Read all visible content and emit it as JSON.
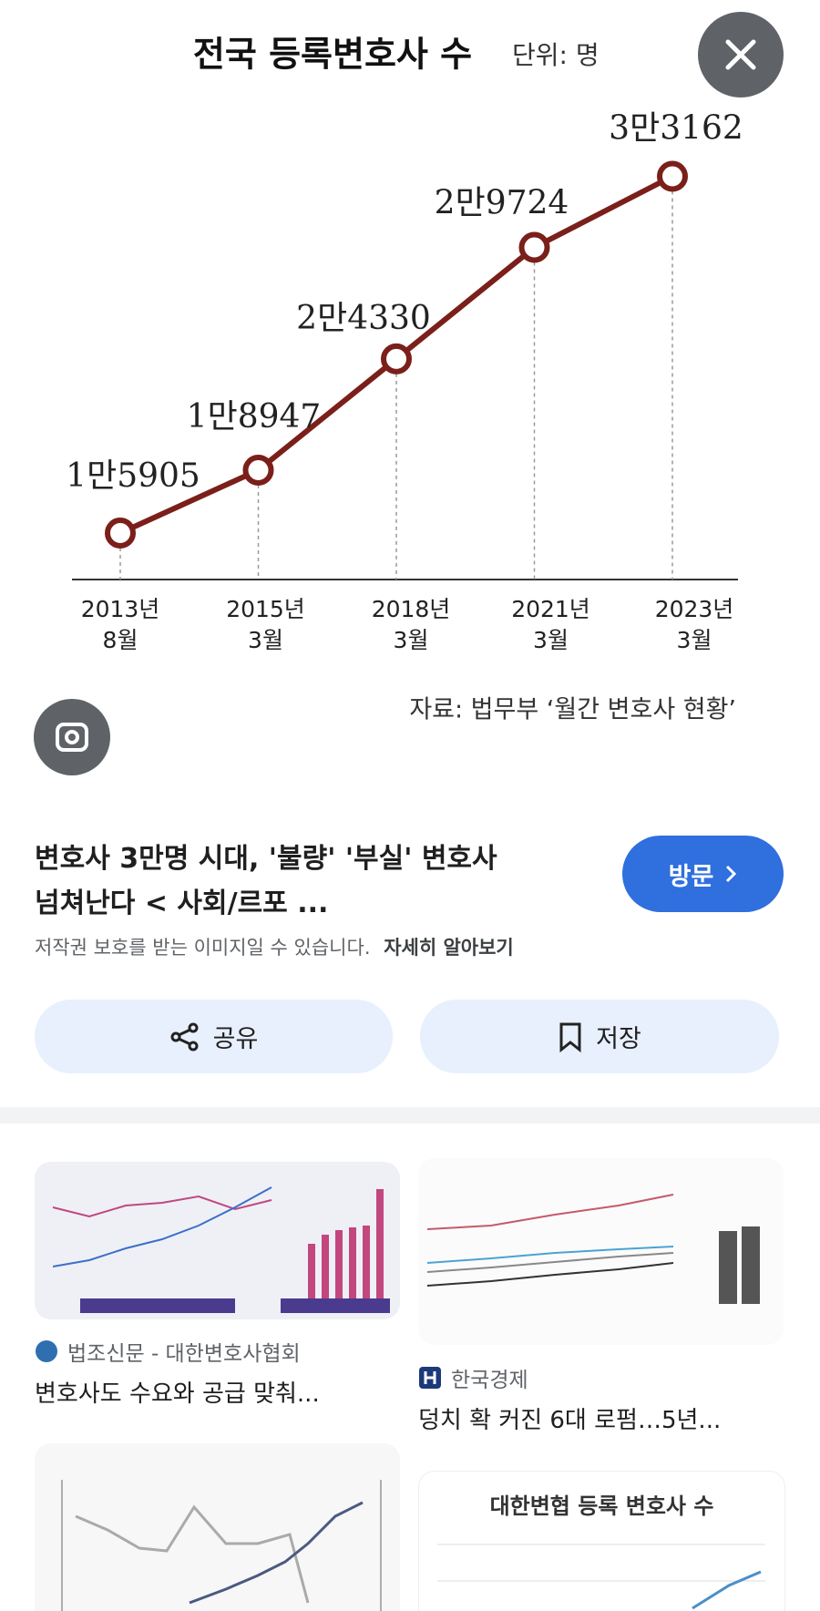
{
  "chart_data": {
    "type": "line",
    "title": "전국 등록변호사 수",
    "subtitle": "단위: 명",
    "categories": [
      "2013년\n8월",
      "2015년\n3월",
      "2018년\n3월",
      "2021년\n3월",
      "2023년\n3월"
    ],
    "values": [
      15905,
      18947,
      24330,
      29724,
      33162
    ],
    "value_labels": [
      "1만5905",
      "1만8947",
      "2만4330",
      "2만9724",
      "3만3162"
    ],
    "color": "#7b1f1a",
    "ylim": [
      13700,
      35000
    ],
    "source": "자료: 법무부 ‘월간 변호사 현황’"
  },
  "result": {
    "title_lines": [
      "변호사 3만명 시대, '불량' '부실' 변호사",
      "넘쳐난다 < 사회/르포 ..."
    ],
    "visit_button": "방문",
    "copyright_note": "저작권 보호를 받는 이미지일 수 있습니다.",
    "learn_more": "자세히 알아보기",
    "share_button": "공유",
    "save_button": "저장"
  },
  "related": [
    {
      "source": "법조신문 - 대한변호사협회",
      "title": "변호사도 수요와 공급 맞춰..."
    },
    {
      "source": "한국경제",
      "title": "덩치 확 커진 6대 로펌…5년..."
    },
    {
      "thumbnail_title": "대한변협 등록 변호사 수"
    }
  ]
}
